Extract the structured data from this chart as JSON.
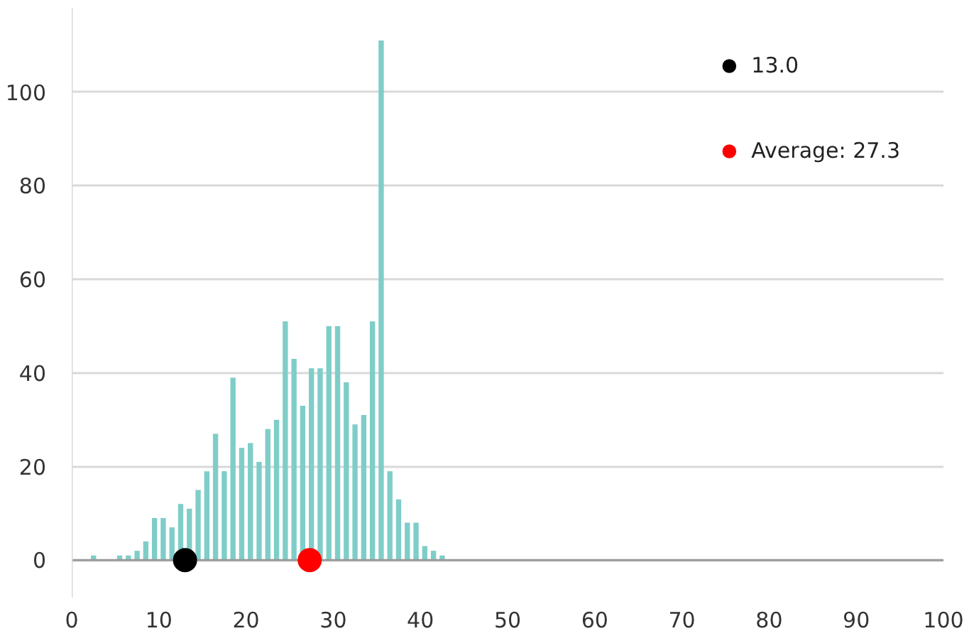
{
  "chart_data": {
    "type": "histogram",
    "bins": [
      0,
      1,
      2,
      3,
      4,
      5,
      6,
      7,
      8,
      9,
      10,
      11,
      12,
      13,
      14,
      15,
      16,
      17,
      18,
      19,
      20,
      21,
      22,
      23,
      24,
      25,
      26,
      27,
      28,
      29,
      30,
      31,
      32,
      33,
      34,
      35,
      36,
      37,
      38,
      39,
      40,
      41,
      42,
      43
    ],
    "values": [
      0,
      0,
      1,
      0,
      0,
      1,
      1,
      2,
      4,
      9,
      9,
      7,
      12,
      11,
      15,
      19,
      27,
      19,
      39,
      24,
      25,
      21,
      28,
      30,
      51,
      43,
      33,
      41,
      41,
      50,
      50,
      38,
      29,
      31,
      51,
      111,
      19,
      13,
      8,
      8,
      3,
      2,
      1
    ],
    "color": "#7fcdc8",
    "series": [
      {
        "type": "scatter",
        "name": "13.0",
        "color": "#000000",
        "x": [
          13.0
        ],
        "values": [
          0
        ]
      },
      {
        "type": "scatter",
        "name": "Average: 27.3",
        "color": "#ff0000",
        "x": [
          27.3
        ],
        "values": [
          0
        ]
      }
    ],
    "marker": "circle",
    "xlim": [
      0,
      100
    ],
    "xticks": [
      0,
      10,
      20,
      30,
      40,
      50,
      60,
      70,
      80,
      90,
      100
    ],
    "ylim": [
      -8,
      118
    ],
    "yticks": [
      0,
      20,
      40,
      60,
      80,
      100
    ],
    "grid": "y",
    "legend": "top right"
  }
}
